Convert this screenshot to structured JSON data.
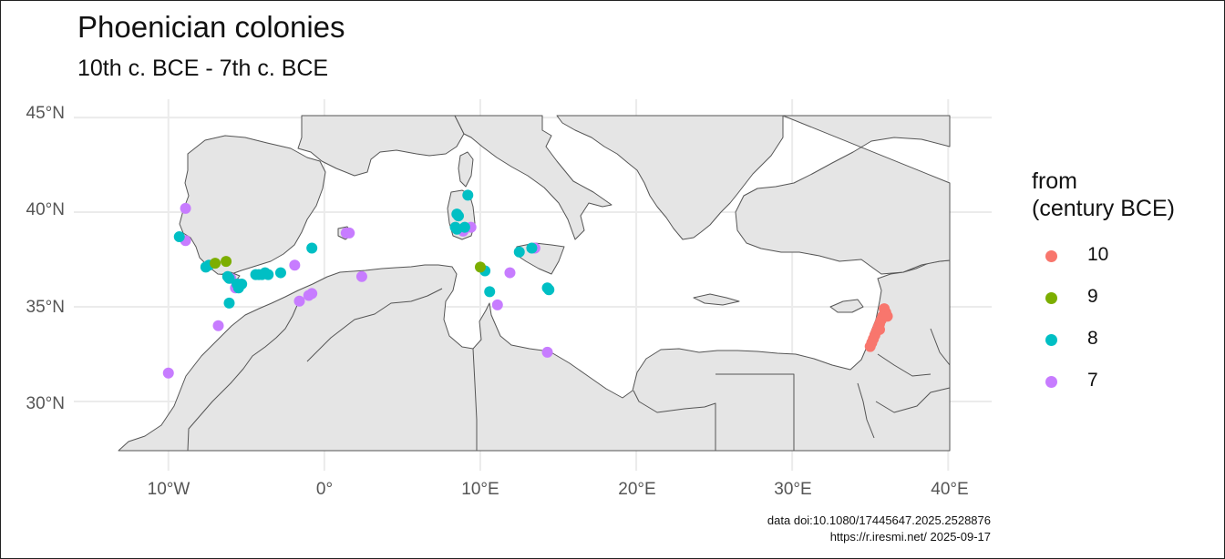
{
  "title": "Phoenician colonies",
  "subtitle": "10th c. BCE - 7th c. BCE",
  "axes": {
    "y_ticks": [
      {
        "lat": 45,
        "label": "45°N"
      },
      {
        "lat": 40,
        "label": "40°N"
      },
      {
        "lat": 35,
        "label": "35°N"
      },
      {
        "lat": 30,
        "label": "30°N"
      }
    ],
    "x_ticks": [
      {
        "lon": -10,
        "label": "10°W"
      },
      {
        "lon": 0,
        "label": "0°"
      },
      {
        "lon": 10,
        "label": "10°E"
      },
      {
        "lon": 20,
        "label": "20°E"
      },
      {
        "lon": 30,
        "label": "30°E"
      },
      {
        "lon": 40,
        "label": "40°E"
      }
    ],
    "lon_range": [
      -13.2,
      40.1
    ],
    "lat_range": [
      27.4,
      45.1
    ]
  },
  "legend": {
    "title_line1": "from",
    "title_line2": "(century BCE)",
    "items": [
      {
        "label": "10",
        "color": "#F8766D"
      },
      {
        "label": "9",
        "color": "#7CAE00"
      },
      {
        "label": "8",
        "color": "#00BFC4"
      },
      {
        "label": "7",
        "color": "#C77CFF"
      }
    ]
  },
  "caption_line1": "data doi:10.1080/17445647.2025.2528876",
  "caption_line2": "https://r.iresmi.net/ 2025-09-17",
  "colors": {
    "land": "#e5e5e5",
    "border": "#555555",
    "grid": "#ebebeb"
  },
  "points": {
    "10": [
      [
        35.9,
        34.9
      ],
      [
        36.0,
        34.7
      ],
      [
        35.8,
        34.5
      ],
      [
        35.7,
        34.3
      ],
      [
        35.6,
        34.1
      ],
      [
        35.5,
        33.9
      ],
      [
        35.4,
        33.7
      ],
      [
        35.3,
        33.5
      ],
      [
        35.2,
        33.3
      ],
      [
        35.1,
        33.1
      ],
      [
        35.0,
        32.9
      ],
      [
        36.1,
        34.5
      ],
      [
        35.6,
        33.8
      ]
    ],
    "9": [
      [
        -6.3,
        37.4
      ],
      [
        -7.0,
        37.3
      ],
      [
        10.0,
        37.1
      ]
    ],
    "8": [
      [
        -9.3,
        38.7
      ],
      [
        -7.6,
        37.1
      ],
      [
        -7.4,
        37.2
      ],
      [
        -6.2,
        36.6
      ],
      [
        -6.1,
        36.5
      ],
      [
        -5.6,
        36.2
      ],
      [
        -5.5,
        36.0
      ],
      [
        -5.3,
        36.2
      ],
      [
        -4.4,
        36.7
      ],
      [
        -4.2,
        36.7
      ],
      [
        -4.0,
        36.7
      ],
      [
        -3.8,
        36.8
      ],
      [
        -3.6,
        36.7
      ],
      [
        -2.8,
        36.8
      ],
      [
        -0.8,
        38.1
      ],
      [
        -6.1,
        35.2
      ],
      [
        8.5,
        39.9
      ],
      [
        8.6,
        39.8
      ],
      [
        8.4,
        39.2
      ],
      [
        8.5,
        39.1
      ],
      [
        9.0,
        39.2
      ],
      [
        9.2,
        40.9
      ],
      [
        10.3,
        36.9
      ],
      [
        10.6,
        35.8
      ],
      [
        12.5,
        37.9
      ],
      [
        13.3,
        38.1
      ],
      [
        14.3,
        36.0
      ],
      [
        14.4,
        35.9
      ]
    ],
    "7": [
      [
        -8.9,
        40.2
      ],
      [
        -8.9,
        38.5
      ],
      [
        -10.0,
        31.5
      ],
      [
        -6.8,
        34.0
      ],
      [
        -6.0,
        36.5
      ],
      [
        -5.7,
        36.0
      ],
      [
        -5.5,
        36.2
      ],
      [
        -1.9,
        37.2
      ],
      [
        -1.6,
        35.3
      ],
      [
        -1.0,
        35.6
      ],
      [
        -0.8,
        35.7
      ],
      [
        1.4,
        38.9
      ],
      [
        1.6,
        38.9
      ],
      [
        2.4,
        36.6
      ],
      [
        8.9,
        39.0
      ],
      [
        9.4,
        39.2
      ],
      [
        11.9,
        36.8
      ],
      [
        11.1,
        35.1
      ],
      [
        13.5,
        38.1
      ],
      [
        14.3,
        32.6
      ]
    ]
  }
}
